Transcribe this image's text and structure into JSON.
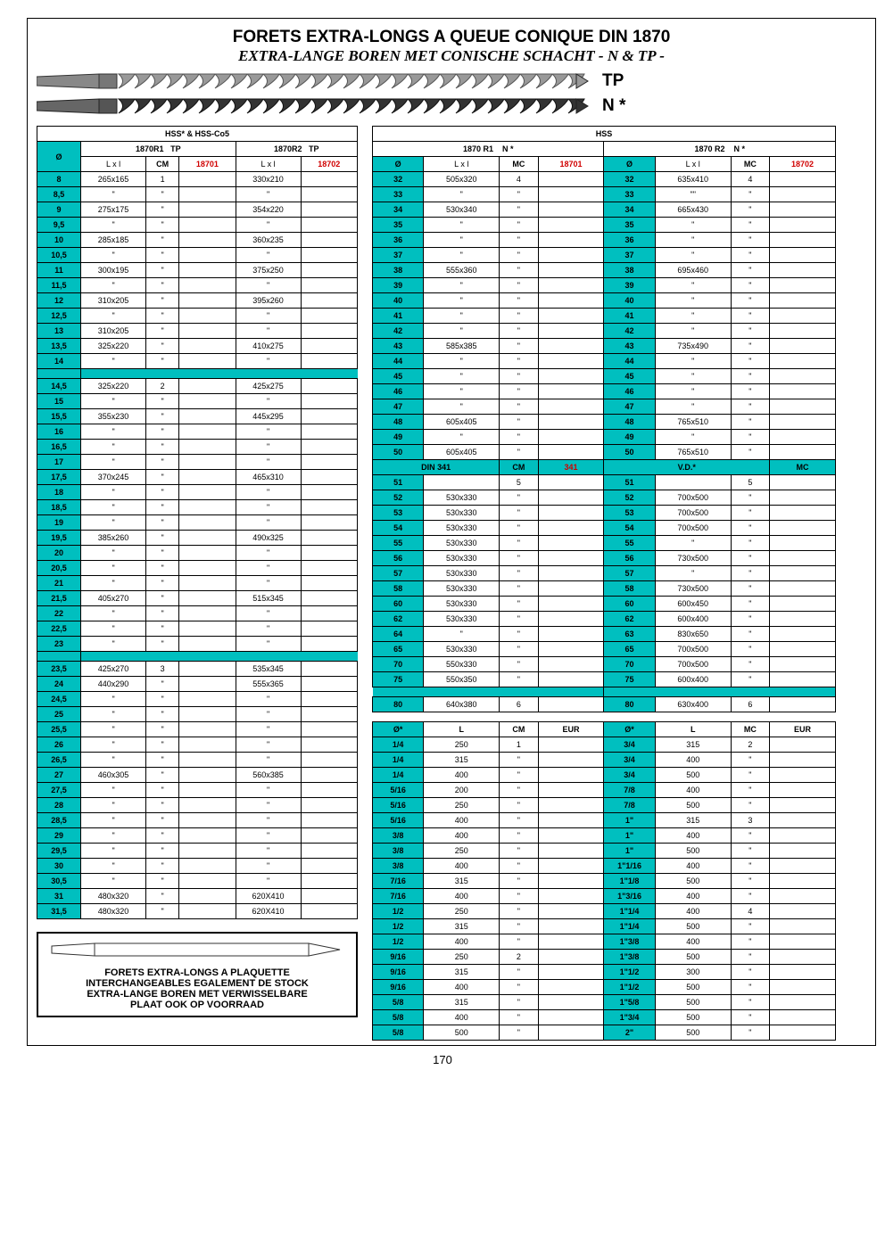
{
  "title_fr": "FORETS EXTRA-LONGS A QUEUE CONIQUE DIN 1870",
  "title_nl": "EXTRA-LANGE  BOREN MET CONISCHE SCHACHT - N & TP -",
  "labels": {
    "tp": "TP",
    "n": "N *",
    "hss_co": "HSS* & HSS-Co5",
    "hss": "HSS",
    "r1": "1870R1",
    "r2": "1870R2",
    "r1b": "1870 R1",
    "r2b": "1870 R2",
    "dia": "Ø",
    "lxl": "L  x  l",
    "cm": "CM",
    "mc": "MC",
    "code1": "18701",
    "code2": "18702",
    "din341": "DIN 341",
    "c341": "341",
    "vd": "V.D.*",
    "eur": "EUR",
    "diax": "Ø*",
    "L": "L"
  },
  "foot": {
    "l1": "FORETS EXTRA-LONGS A PLAQUETTE",
    "l2": "INTERCHANGEABLES EGALEMENT DE STOCK",
    "l3": "EXTRA-LANGE BOREN MET VERWISSELBARE",
    "l4": "PLAAT OOK OP VOORRAAD"
  },
  "page": "170",
  "left_rows": [
    {
      "d": "8",
      "l1": "265x165",
      "cm": "1",
      "l2": "330x210"
    },
    {
      "d": "8,5",
      "l1": "\"",
      "cm": "\"",
      "l2": "\""
    },
    {
      "d": "9",
      "l1": "275x175",
      "cm": "\"",
      "l2": "354x220"
    },
    {
      "d": "9,5",
      "l1": "\"",
      "cm": "\"",
      "l2": "\""
    },
    {
      "d": "10",
      "l1": "285x185",
      "cm": "\"",
      "l2": "360x235"
    },
    {
      "d": "10,5",
      "l1": "\"",
      "cm": "\"",
      "l2": "\""
    },
    {
      "d": "11",
      "l1": "300x195",
      "cm": "\"",
      "l2": "375x250"
    },
    {
      "d": "11,5",
      "l1": "\"",
      "cm": "\"",
      "l2": "\""
    },
    {
      "d": "12",
      "l1": "310x205",
      "cm": "\"",
      "l2": "395x260"
    },
    {
      "d": "12,5",
      "l1": "\"",
      "cm": "\"",
      "l2": "\""
    },
    {
      "d": "13",
      "l1": "310x205",
      "cm": "\"",
      "l2": "\""
    },
    {
      "d": "13,5",
      "l1": "325x220",
      "cm": "\"",
      "l2": "410x275"
    },
    {
      "d": "14",
      "l1": "\"",
      "cm": "\"",
      "l2": "\""
    },
    {
      "sep": true
    },
    {
      "d": "14,5",
      "l1": "325x220",
      "cm": "2",
      "l2": "425x275"
    },
    {
      "d": "15",
      "l1": "\"",
      "cm": "\"",
      "l2": "\""
    },
    {
      "d": "15,5",
      "l1": "355x230",
      "cm": "\"",
      "l2": "445x295"
    },
    {
      "d": "16",
      "l1": "\"",
      "cm": "\"",
      "l2": "\""
    },
    {
      "d": "16,5",
      "l1": "\"",
      "cm": "\"",
      "l2": "\""
    },
    {
      "d": "17",
      "l1": "\"",
      "cm": "\"",
      "l2": "\""
    },
    {
      "d": "17,5",
      "l1": "370x245",
      "cm": "\"",
      "l2": "465x310"
    },
    {
      "d": "18",
      "l1": "\"",
      "cm": "\"",
      "l2": "\""
    },
    {
      "d": "18,5",
      "l1": "\"",
      "cm": "\"",
      "l2": "\""
    },
    {
      "d": "19",
      "l1": "\"",
      "cm": "\"",
      "l2": "\""
    },
    {
      "d": "19,5",
      "l1": "385x260",
      "cm": "\"",
      "l2": "490x325"
    },
    {
      "d": "20",
      "l1": "\"",
      "cm": "\"",
      "l2": "\""
    },
    {
      "d": "20,5",
      "l1": "\"",
      "cm": "\"",
      "l2": "\""
    },
    {
      "d": "21",
      "l1": "\"",
      "cm": "\"",
      "l2": "\""
    },
    {
      "d": "21,5",
      "l1": "405x270",
      "cm": "\"",
      "l2": "515x345"
    },
    {
      "d": "22",
      "l1": "\"",
      "cm": "\"",
      "l2": "\""
    },
    {
      "d": "22,5",
      "l1": "\"",
      "cm": "\"",
      "l2": "\""
    },
    {
      "d": "23",
      "l1": "\"",
      "cm": "\"",
      "l2": "\""
    },
    {
      "sep": true
    },
    {
      "d": "23,5",
      "l1": "425x270",
      "cm": "3",
      "l2": "535x345"
    },
    {
      "d": "24",
      "l1": "440x290",
      "cm": "\"",
      "l2": "555x365"
    },
    {
      "d": "24,5",
      "l1": "\"",
      "cm": "\"",
      "l2": "\""
    },
    {
      "d": "25",
      "l1": "\"",
      "cm": "\"",
      "l2": "\""
    },
    {
      "d": "25,5",
      "l1": "\"",
      "cm": "\"",
      "l2": "\""
    },
    {
      "d": "26",
      "l1": "\"",
      "cm": "\"",
      "l2": "\""
    },
    {
      "d": "26,5",
      "l1": "\"",
      "cm": "\"",
      "l2": "\""
    },
    {
      "d": "27",
      "l1": "460x305",
      "cm": "\"",
      "l2": "560x385"
    },
    {
      "d": "27,5",
      "l1": "\"",
      "cm": "\"",
      "l2": "\""
    },
    {
      "d": "28",
      "l1": "\"",
      "cm": "\"",
      "l2": "\""
    },
    {
      "d": "28,5",
      "l1": "\"",
      "cm": "\"",
      "l2": "\""
    },
    {
      "d": "29",
      "l1": "\"",
      "cm": "\"",
      "l2": "\""
    },
    {
      "d": "29,5",
      "l1": "\"",
      "cm": "\"",
      "l2": "\""
    },
    {
      "d": "30",
      "l1": "\"",
      "cm": "\"",
      "l2": "\""
    },
    {
      "d": "30,5",
      "l1": "\"",
      "cm": "\"",
      "l2": "\""
    },
    {
      "d": "31",
      "l1": "480x320",
      "cm": "\"",
      "l2": "620X410"
    },
    {
      "d": "31,5",
      "l1": "480x320",
      "cm": "\"",
      "l2": "620X410"
    }
  ],
  "right_top": [
    {
      "d": "32",
      "l1": "505x320",
      "mc": "4",
      "d2": "32",
      "l2": "635x410",
      "mc2": "4"
    },
    {
      "d": "33",
      "l1": "\"",
      "mc": "\"",
      "d2": "33",
      "l2": "\"\"",
      "mc2": "\""
    },
    {
      "d": "34",
      "l1": "530x340",
      "mc": "\"",
      "d2": "34",
      "l2": "665x430",
      "mc2": "\""
    },
    {
      "d": "35",
      "l1": "\"",
      "mc": "\"",
      "d2": "35",
      "l2": "\"",
      "mc2": "\""
    },
    {
      "d": "36",
      "l1": "\"",
      "mc": "\"",
      "d2": "36",
      "l2": "\"",
      "mc2": "\""
    },
    {
      "d": "37",
      "l1": "\"",
      "mc": "\"",
      "d2": "37",
      "l2": "\"",
      "mc2": "\""
    },
    {
      "d": "38",
      "l1": "555x360",
      "mc": "\"",
      "d2": "38",
      "l2": "695x460",
      "mc2": "\""
    },
    {
      "d": "39",
      "l1": "\"",
      "mc": "\"",
      "d2": "39",
      "l2": "\"",
      "mc2": "\""
    },
    {
      "d": "40",
      "l1": "\"",
      "mc": "\"",
      "d2": "40",
      "l2": "\"",
      "mc2": "\""
    },
    {
      "d": "41",
      "l1": "\"",
      "mc": "\"",
      "d2": "41",
      "l2": "\"",
      "mc2": "\""
    },
    {
      "d": "42",
      "l1": "\"",
      "mc": "\"",
      "d2": "42",
      "l2": "\"",
      "mc2": "\""
    },
    {
      "d": "43",
      "l1": "585x385",
      "mc": "\"",
      "d2": "43",
      "l2": "735x490",
      "mc2": "\""
    },
    {
      "d": "44",
      "l1": "\"",
      "mc": "\"",
      "d2": "44",
      "l2": "\"",
      "mc2": "\""
    },
    {
      "d": "45",
      "l1": "\"",
      "mc": "\"",
      "d2": "45",
      "l2": "\"",
      "mc2": "\""
    },
    {
      "d": "46",
      "l1": "\"",
      "mc": "\"",
      "d2": "46",
      "l2": "\"",
      "mc2": "\""
    },
    {
      "d": "47",
      "l1": "\"",
      "mc": "\"",
      "d2": "47",
      "l2": "\"",
      "mc2": "\""
    },
    {
      "d": "48",
      "l1": "605x405",
      "mc": "\"",
      "d2": "48",
      "l2": "765x510",
      "mc2": "\""
    },
    {
      "d": "49",
      "l1": "\"",
      "mc": "\"",
      "d2": "49",
      "l2": "\"",
      "mc2": "\""
    },
    {
      "d": "50",
      "l1": "605x405",
      "mc": "\"",
      "d2": "50",
      "l2": "765x510",
      "mc2": "\""
    }
  ],
  "right_mid": [
    {
      "d": "51",
      "l1": "",
      "mc": "5",
      "d2": "51",
      "l2": "",
      "mc2": "5"
    },
    {
      "d": "52",
      "l1": "530x330",
      "mc": "\"",
      "d2": "52",
      "l2": "700x500",
      "mc2": "\""
    },
    {
      "d": "53",
      "l1": "530x330",
      "mc": "\"",
      "d2": "53",
      "l2": "700x500",
      "mc2": "\""
    },
    {
      "d": "54",
      "l1": "530x330",
      "mc": "\"",
      "d2": "54",
      "l2": "700x500",
      "mc2": "\""
    },
    {
      "d": "55",
      "l1": "530x330",
      "mc": "\"",
      "d2": "55",
      "l2": "\"",
      "mc2": "\""
    },
    {
      "d": "56",
      "l1": "530x330",
      "mc": "\"",
      "d2": "56",
      "l2": "730x500",
      "mc2": "\""
    },
    {
      "d": "57",
      "l1": "530x330",
      "mc": "\"",
      "d2": "57",
      "l2": "\"",
      "mc2": "\""
    },
    {
      "d": "58",
      "l1": "530x330",
      "mc": "\"",
      "d2": "58",
      "l2": "730x500",
      "mc2": "\""
    },
    {
      "d": "60",
      "l1": "530x330",
      "mc": "\"",
      "d2": "60",
      "l2": "600x450",
      "mc2": "\""
    },
    {
      "d": "62",
      "l1": "530x330",
      "mc": "\"",
      "d2": "62",
      "l2": "600x400",
      "mc2": "\""
    },
    {
      "d": "64",
      "l1": "\"",
      "mc": "\"",
      "d2": "63",
      "l2": "830x650",
      "mc2": "\""
    },
    {
      "d": "65",
      "l1": "530x330",
      "mc": "\"",
      "d2": "65",
      "l2": "700x500",
      "mc2": "\""
    },
    {
      "d": "70",
      "l1": "550x330",
      "mc": "\"",
      "d2": "70",
      "l2": "700x500",
      "mc2": "\""
    },
    {
      "d": "75",
      "l1": "550x350",
      "mc": "\"",
      "d2": "75",
      "l2": "600x400",
      "mc2": "\""
    },
    {
      "sep": true
    },
    {
      "d": "80",
      "l1": "640x380",
      "mc": "6",
      "d2": "80",
      "l2": "630x400",
      "mc2": "6"
    }
  ],
  "right_bot": [
    {
      "d": "1/4",
      "l": "250",
      "cm": "1",
      "d2": "3/4",
      "l2": "315",
      "mc": "2"
    },
    {
      "d": "1/4",
      "l": "315",
      "cm": "\"",
      "d2": "3/4",
      "l2": "400",
      "mc": "\""
    },
    {
      "d": "1/4",
      "l": "400",
      "cm": "\"",
      "d2": "3/4",
      "l2": "500",
      "mc": "\""
    },
    {
      "d": "5/16",
      "l": "200",
      "cm": "\"",
      "d2": "7/8",
      "l2": "400",
      "mc": "\""
    },
    {
      "d": "5/16",
      "l": "250",
      "cm": "\"",
      "d2": "7/8",
      "l2": "500",
      "mc": "\""
    },
    {
      "d": "5/16",
      "l": "400",
      "cm": "\"",
      "d2": "1\"",
      "l2": "315",
      "mc": "3"
    },
    {
      "d": "3/8",
      "l": "400",
      "cm": "\"",
      "d2": "1\"",
      "l2": "400",
      "mc": "\""
    },
    {
      "d": "3/8",
      "l": "250",
      "cm": "\"",
      "d2": "1\"",
      "l2": "500",
      "mc": "\""
    },
    {
      "d": "3/8",
      "l": "400",
      "cm": "\"",
      "d2": "1\"1/16",
      "l2": "400",
      "mc": "\""
    },
    {
      "d": "7/16",
      "l": "315",
      "cm": "\"",
      "d2": "1\"1/8",
      "l2": "500",
      "mc": "\""
    },
    {
      "d": "7/16",
      "l": "400",
      "cm": "\"",
      "d2": "1\"3/16",
      "l2": "400",
      "mc": "\""
    },
    {
      "d": "1/2",
      "l": "250",
      "cm": "\"",
      "d2": "1\"1/4",
      "l2": "400",
      "mc": "4"
    },
    {
      "d": "1/2",
      "l": "315",
      "cm": "\"",
      "d2": "1\"1/4",
      "l2": "500",
      "mc": "\""
    },
    {
      "d": "1/2",
      "l": "400",
      "cm": "\"",
      "d2": "1\"3/8",
      "l2": "400",
      "mc": "\""
    },
    {
      "d": "9/16",
      "l": "250",
      "cm": "2",
      "d2": "1\"3/8",
      "l2": "500",
      "mc": "\""
    },
    {
      "d": "9/16",
      "l": "315",
      "cm": "\"",
      "d2": "1\"1/2",
      "l2": "300",
      "mc": "\""
    },
    {
      "d": "9/16",
      "l": "400",
      "cm": "\"",
      "d2": "1\"1/2",
      "l2": "500",
      "mc": "\""
    },
    {
      "d": "5/8",
      "l": "315",
      "cm": "\"",
      "d2": "1\"5/8",
      "l2": "500",
      "mc": "\""
    },
    {
      "d": "5/8",
      "l": "400",
      "cm": "\"",
      "d2": "1\"3/4",
      "l2": "500",
      "mc": "\""
    },
    {
      "d": "5/8",
      "l": "500",
      "cm": "\"",
      "d2": "2\"",
      "l2": "500",
      "mc": "\""
    }
  ],
  "style": {
    "cyan": "#00bfbf",
    "red": "#d00000",
    "border": "#000000",
    "font": "Arial"
  }
}
